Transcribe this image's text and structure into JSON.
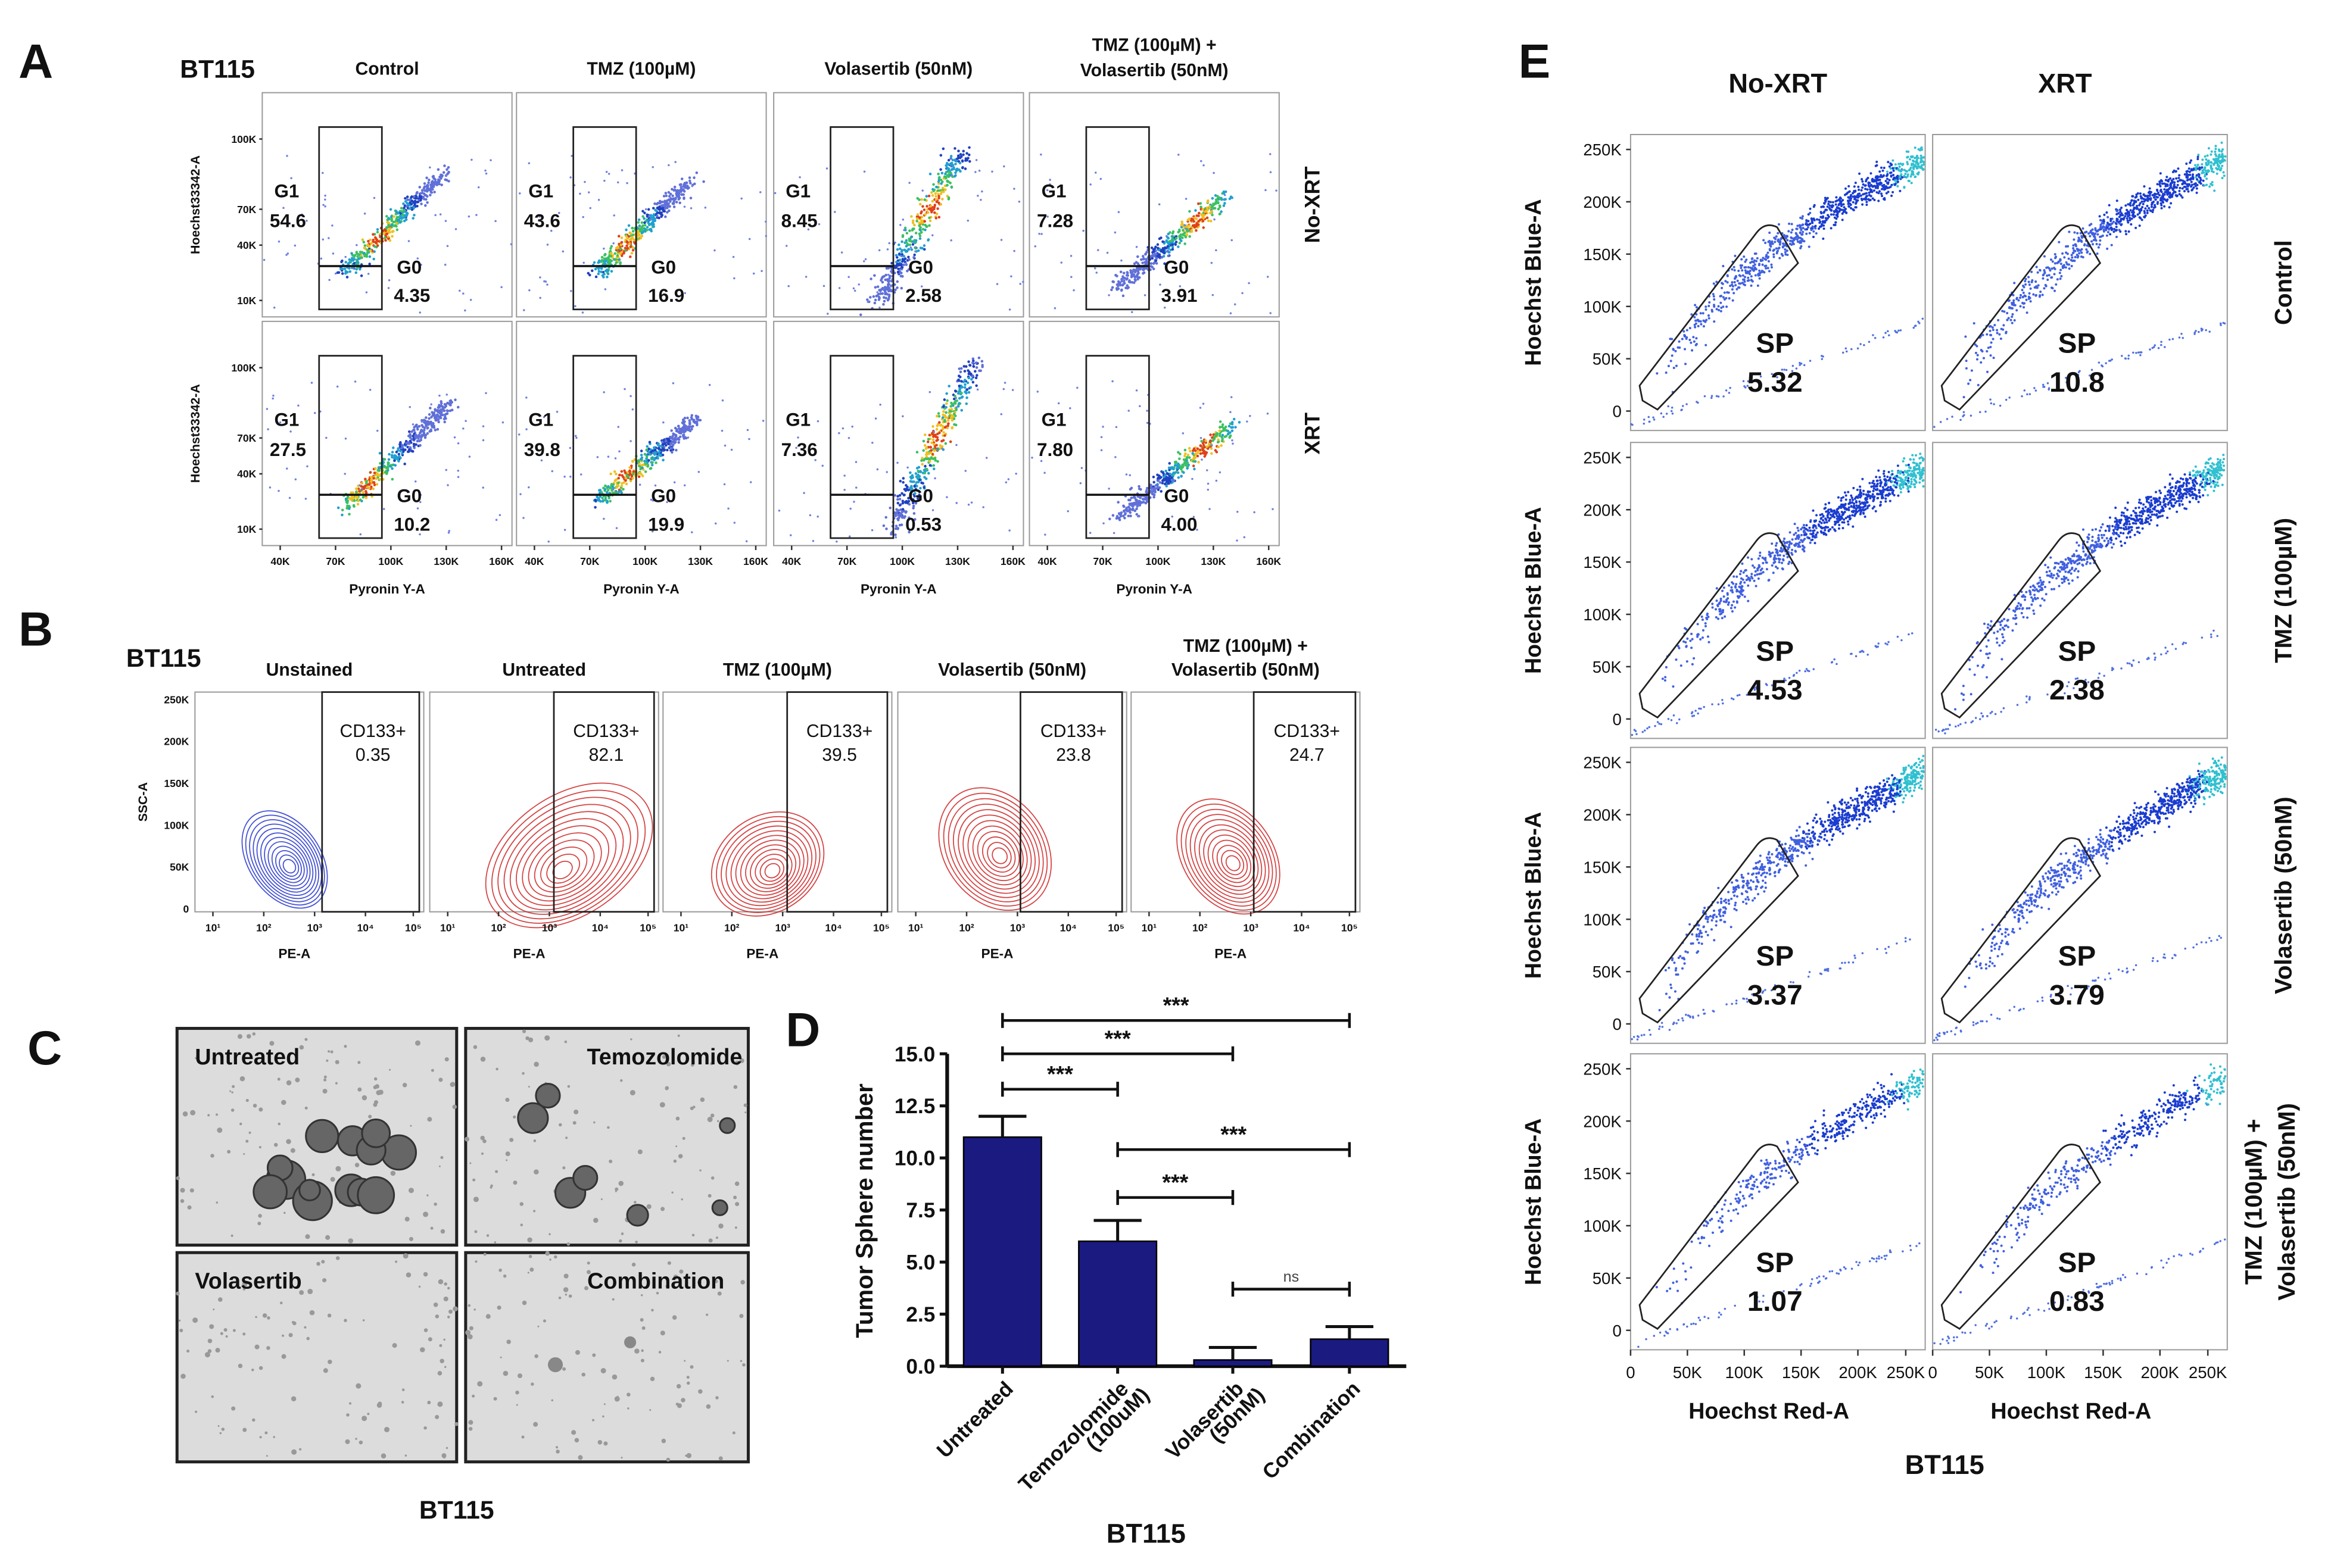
{
  "panel_a": {
    "letter": "A",
    "cell_line": "BT115",
    "columns": [
      [
        "Control"
      ],
      [
        "TMZ (100µM)"
      ],
      [
        "Volasertib (50nM)"
      ],
      [
        "TMZ (100µM) +",
        "Volasertib (50nM)"
      ]
    ],
    "rows": [
      {
        "label": "No-XRT",
        "values": [
          {
            "g1": "54.6",
            "g0": "4.35"
          },
          {
            "g1": "43.6",
            "g0": "16.9"
          },
          {
            "g1": "8.45",
            "g0": "2.58"
          },
          {
            "g1": "7.28",
            "g0": "3.91"
          }
        ]
      },
      {
        "label": "XRT",
        "values": [
          {
            "g1": "27.5",
            "g0": "10.2"
          },
          {
            "g1": "39.8",
            "g0": "19.9"
          },
          {
            "g1": "7.36",
            "g0": "0.53"
          },
          {
            "g1": "7.80",
            "g0": "4.00"
          }
        ]
      }
    ],
    "gate_g1": "G1",
    "gate_g0": "G0",
    "y_axis": "Hoechst33342-A",
    "y_ticks": [
      "100K",
      "70K",
      "40K",
      "10K"
    ],
    "x_axis": "Pyronin Y-A",
    "x_ticks": [
      "40K",
      "70K",
      "100K",
      "130K",
      "160K"
    ]
  },
  "panel_b": {
    "letter": "B",
    "cell_line": "BT115",
    "columns": [
      [
        "Unstained"
      ],
      [
        "Untreated"
      ],
      [
        "TMZ (100µM)"
      ],
      [
        "Volasertib (50nM)"
      ],
      [
        "TMZ (100µM)  +",
        "Volasertib (50nM)"
      ]
    ],
    "gate_label": "CD133+",
    "values": [
      "0.35",
      "82.1",
      "39.5",
      "23.8",
      "24.7"
    ],
    "y_axis": "SSC-A",
    "y_ticks": [
      "250K",
      "200K",
      "150K",
      "100K",
      "50K",
      "0"
    ],
    "x_axis": "PE-A",
    "x_ticks": [
      "10¹",
      "10²",
      "10³",
      "10⁴",
      "10⁵"
    ],
    "colors": {
      "unstained": "#2233cc",
      "stained": "#cc2222"
    }
  },
  "panel_c": {
    "letter": "C",
    "images": [
      "Untreated",
      "Temozolomide",
      "Volasertib",
      "Combination"
    ],
    "caption": "BT115"
  },
  "panel_e": {
    "letter": "E",
    "columns": [
      "No-XRT",
      "XRT"
    ],
    "rows": [
      {
        "label": [
          "Control"
        ],
        "values": [
          "5.32",
          "10.8"
        ]
      },
      {
        "label": [
          "TMZ (100µM)"
        ],
        "values": [
          "4.53",
          "2.38"
        ]
      },
      {
        "label": [
          "Volasertib (50nM)"
        ],
        "values": [
          "3.37",
          "3.79"
        ]
      },
      {
        "label": [
          "TMZ (100µM) +",
          "Volasertib (50nM)"
        ],
        "values": [
          "1.07",
          "0.83"
        ]
      }
    ],
    "gate_label": "SP",
    "y_axis": "Hoechst Blue-A",
    "y_ticks": [
      "250K",
      "200K",
      "150K",
      "100K",
      "50K",
      "0"
    ],
    "x_axis": "Hoechst Red-A",
    "x_ticks": [
      "0",
      "50K",
      "100K",
      "150K",
      "200K",
      "250K"
    ],
    "caption": "BT115"
  },
  "chart_data": {
    "type": "bar",
    "panel": "D",
    "title": "",
    "categories": [
      "Untreated",
      "Temozolomide\n(100uM)",
      "Volasertib\n(50nM)",
      "Combination"
    ],
    "category_lines": [
      [
        "Untreated"
      ],
      [
        "Temozolomide",
        "(100uM)"
      ],
      [
        "Volasertib",
        "(50nM)"
      ],
      [
        "Combination"
      ]
    ],
    "values": [
      11.0,
      6.0,
      0.3,
      1.3
    ],
    "errors": [
      1.0,
      1.0,
      0.6,
      0.6
    ],
    "xlabel": "BT115",
    "ylabel": "Tumor Sphere number",
    "ylim": [
      0,
      15
    ],
    "y_ticks": [
      "0.0",
      "2.5",
      "5.0",
      "7.5",
      "10.0",
      "12.5",
      "15.0"
    ],
    "bar_color": "#1a1a80",
    "significance": [
      {
        "from": 0,
        "to": 3,
        "label": "***",
        "y": 16.6
      },
      {
        "from": 0,
        "to": 2,
        "label": "***",
        "y": 15.0
      },
      {
        "from": 0,
        "to": 1,
        "label": "***",
        "y": 13.3
      },
      {
        "from": 1,
        "to": 3,
        "label": "***",
        "y": 10.4
      },
      {
        "from": 1,
        "to": 2,
        "label": "***",
        "y": 8.1
      },
      {
        "from": 2,
        "to": 3,
        "label": "ns",
        "y": 3.7
      }
    ]
  }
}
